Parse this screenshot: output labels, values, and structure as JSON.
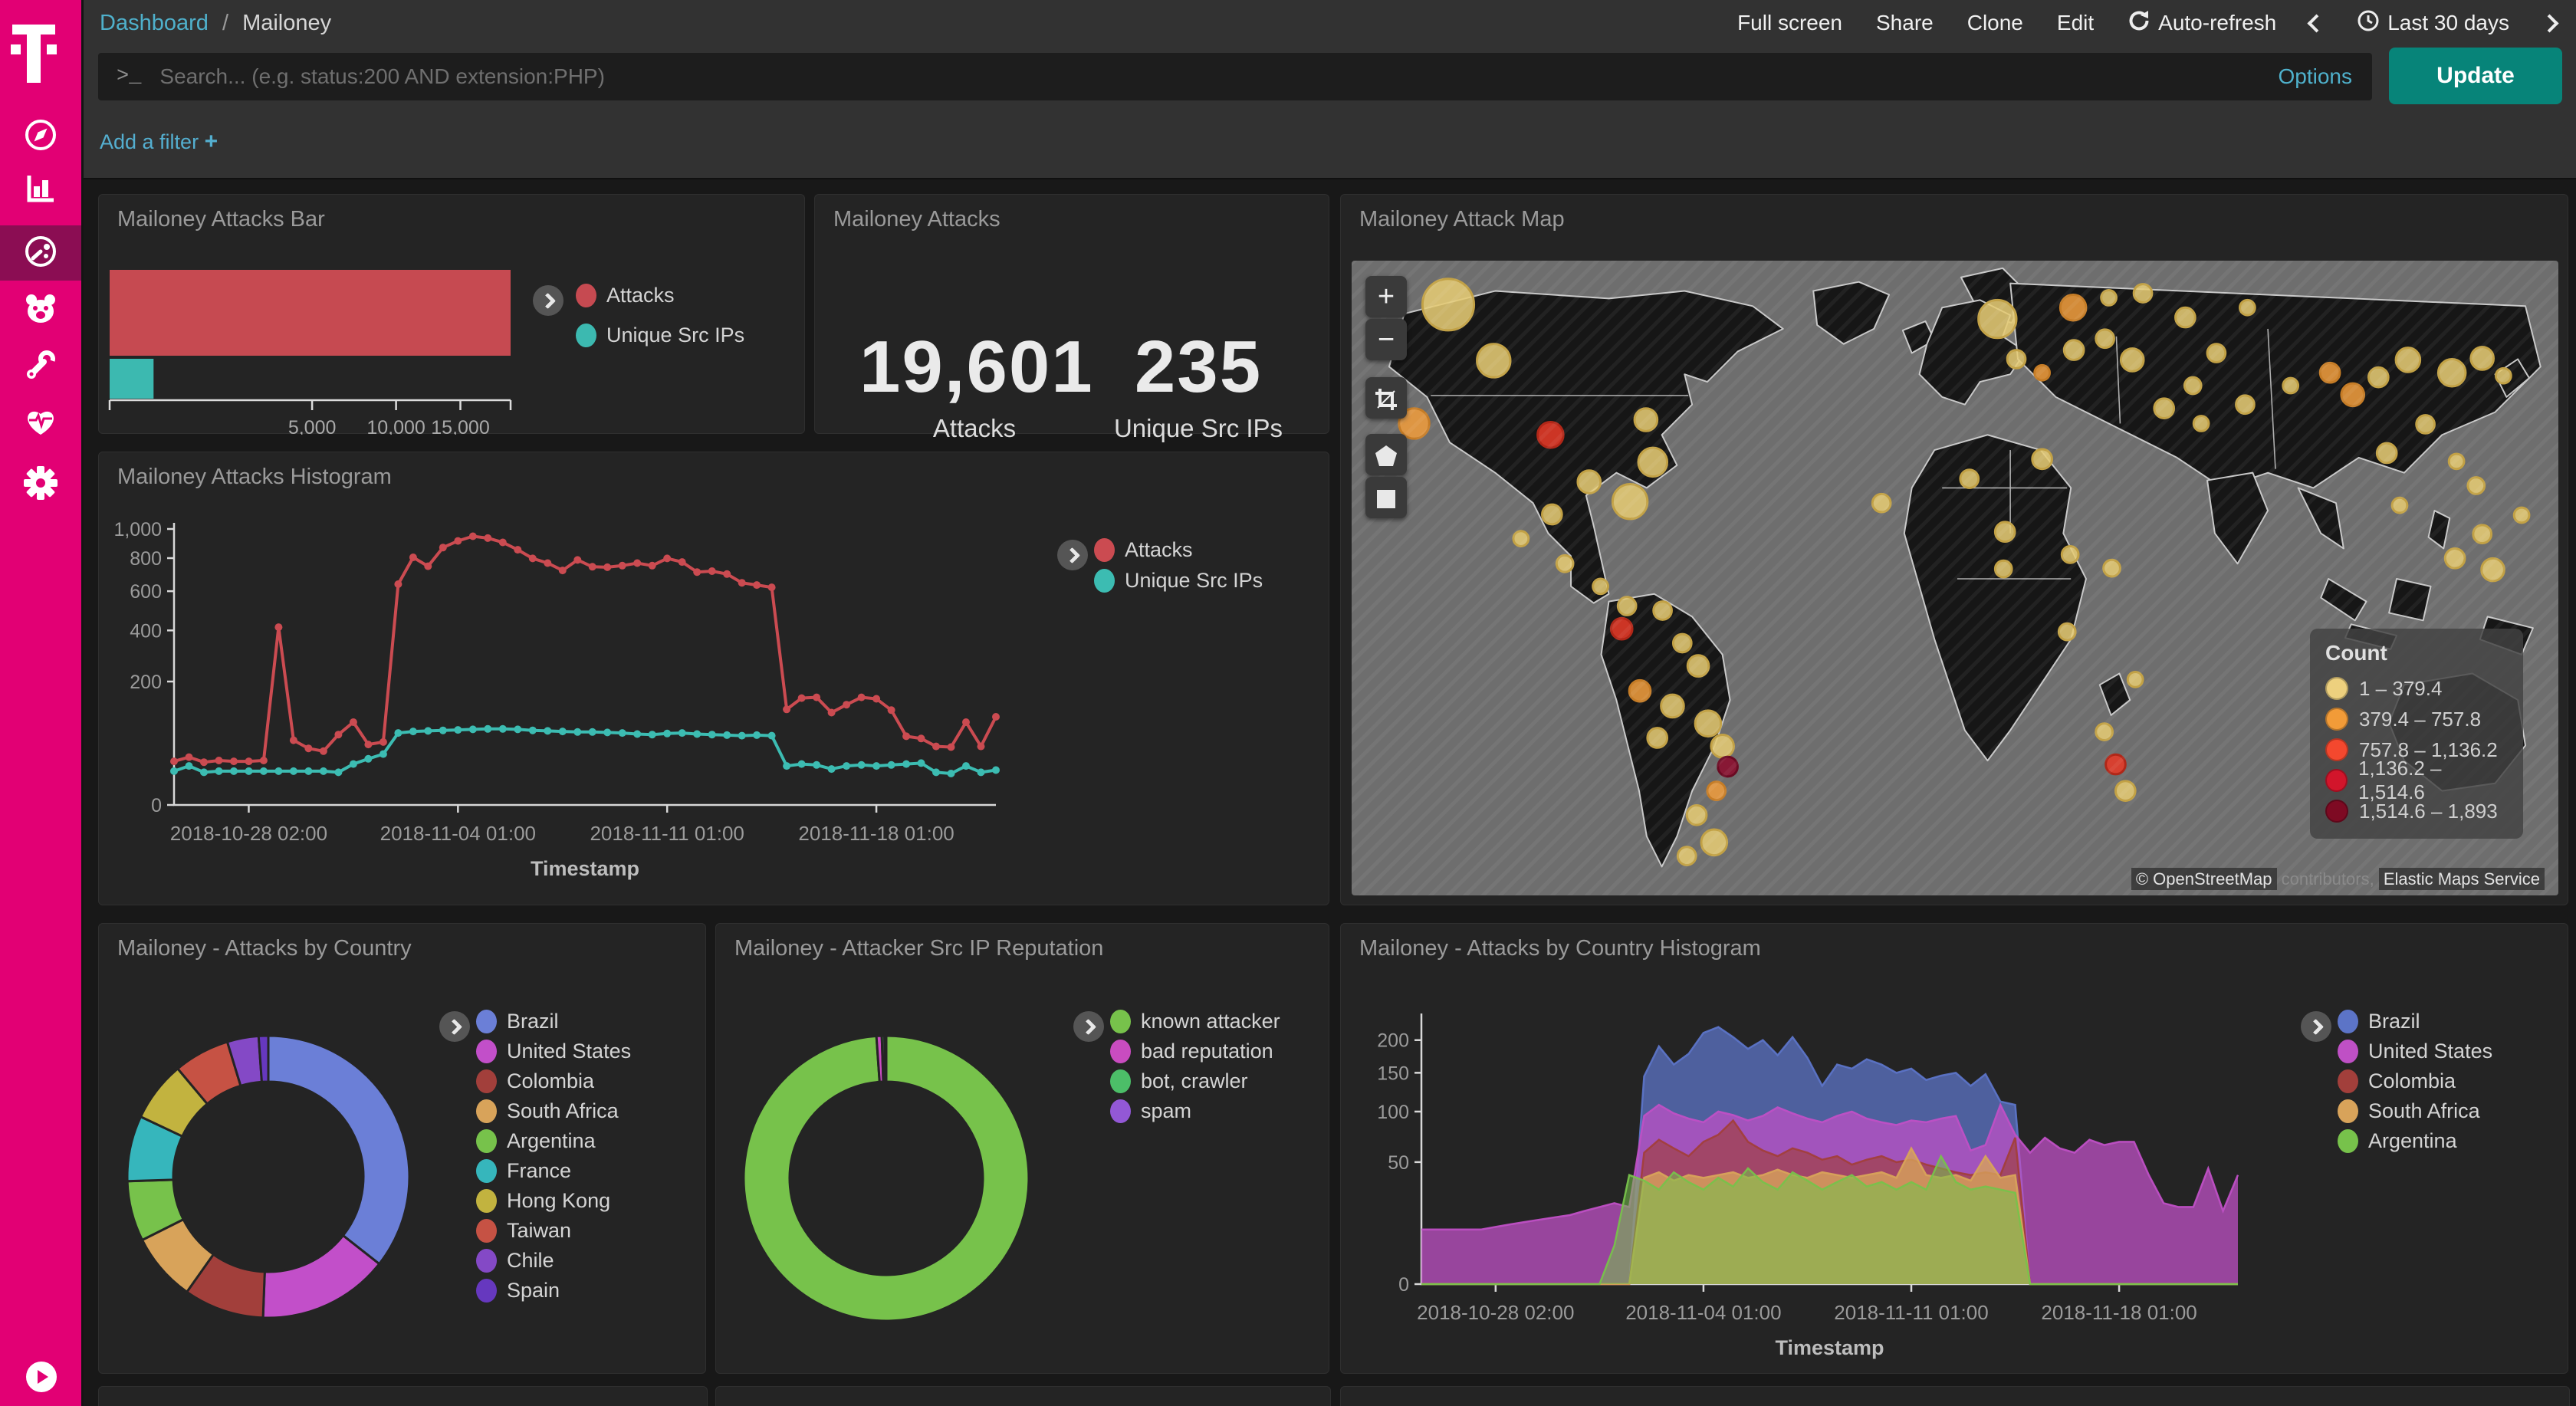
{
  "sidebar": {
    "brand": "T",
    "items": [
      {
        "name": "discover"
      },
      {
        "name": "visualize"
      },
      {
        "name": "dashboard",
        "active": true
      },
      {
        "name": "timelion"
      },
      {
        "name": "dev-tools"
      },
      {
        "name": "monitoring"
      },
      {
        "name": "management"
      }
    ]
  },
  "topbar": {
    "breadcrumb_root": "Dashboard",
    "breadcrumb_sep": "/",
    "breadcrumb_page": "Mailoney",
    "actions": {
      "full_screen": "Full screen",
      "share": "Share",
      "clone": "Clone",
      "edit": "Edit",
      "auto_refresh": "Auto-refresh"
    },
    "time_range": "Last 30 days"
  },
  "search": {
    "placeholder": "Search... (e.g. status:200 AND extension:PHP)",
    "prompt": ">_",
    "options_label": "Options",
    "update_label": "Update"
  },
  "filter_bar": {
    "add_filter_label": "Add a filter",
    "plus": "+"
  },
  "metric_panel": {
    "title": "Mailoney Attacks",
    "metrics": [
      {
        "value": "19,601",
        "label": "Attacks"
      },
      {
        "value": "235",
        "label": "Unique Src IPs"
      }
    ]
  },
  "map": {
    "title": "Mailoney Attack Map",
    "controls": [
      "zoom-in",
      "zoom-out",
      "crop",
      "polygon",
      "rectangle"
    ],
    "legend_title": "Count",
    "legend": [
      {
        "label": "1 – 379.4",
        "color": "#EDD07E"
      },
      {
        "label": "379.4 – 757.8",
        "color": "#F29B38"
      },
      {
        "label": "757.8 – 1,136.2",
        "color": "#F4482E"
      },
      {
        "label": "1,136.2 – 1,514.6",
        "color": "#D2152B"
      },
      {
        "label": "1,514.6 – 1,893",
        "color": "#7E0A23"
      }
    ],
    "attribution": {
      "a": "© OpenStreetMap",
      "b": "contributors,",
      "c": "Elastic Maps Service"
    },
    "palette": {
      "y": {
        "f": "#E5CB74",
        "s": "#C2A145"
      },
      "o": {
        "f": "#EE9C3D",
        "s": "#C57C26"
      },
      "r": {
        "f": "#E63A28",
        "s": "#B02718"
      },
      "d": {
        "f": "#8C0D2D",
        "s": "#6A0A22"
      }
    },
    "circles": [
      [
        118,
        58,
        34,
        "y"
      ],
      [
        178,
        132,
        22,
        "y"
      ],
      [
        73,
        215,
        20,
        "o"
      ],
      [
        48,
        248,
        13,
        "y"
      ],
      [
        253,
        230,
        17,
        "r"
      ],
      [
        379,
        210,
        15,
        "y"
      ],
      [
        388,
        266,
        19,
        "y"
      ],
      [
        304,
        292,
        15,
        "y"
      ],
      [
        358,
        318,
        23,
        "y"
      ],
      [
        255,
        335,
        13,
        "y"
      ],
      [
        214,
        367,
        10,
        "y"
      ],
      [
        272,
        400,
        11,
        "y"
      ],
      [
        319,
        430,
        10,
        "y"
      ],
      [
        354,
        456,
        12,
        "y"
      ],
      [
        347,
        486,
        14,
        "r"
      ],
      [
        401,
        462,
        12,
        "y"
      ],
      [
        427,
        505,
        12,
        "y"
      ],
      [
        448,
        535,
        14,
        "y"
      ],
      [
        371,
        568,
        14,
        "o"
      ],
      [
        414,
        588,
        15,
        "y"
      ],
      [
        394,
        630,
        13,
        "y"
      ],
      [
        461,
        611,
        17,
        "y"
      ],
      [
        480,
        641,
        15,
        "y"
      ],
      [
        487,
        668,
        13,
        "d"
      ],
      [
        472,
        700,
        12,
        "o"
      ],
      [
        446,
        732,
        13,
        "y"
      ],
      [
        469,
        768,
        17,
        "y"
      ],
      [
        433,
        786,
        12,
        "y"
      ],
      [
        843,
        77,
        25,
        "y"
      ],
      [
        943,
        62,
        17,
        "o"
      ],
      [
        990,
        49,
        10,
        "y"
      ],
      [
        1035,
        43,
        12,
        "y"
      ],
      [
        868,
        130,
        12,
        "y"
      ],
      [
        902,
        148,
        10,
        "o"
      ],
      [
        944,
        118,
        13,
        "y"
      ],
      [
        985,
        103,
        12,
        "y"
      ],
      [
        1021,
        131,
        15,
        "y"
      ],
      [
        1091,
        75,
        13,
        "y"
      ],
      [
        1132,
        122,
        12,
        "y"
      ],
      [
        1173,
        62,
        10,
        "y"
      ],
      [
        690,
        320,
        12,
        "y"
      ],
      [
        806,
        288,
        12,
        "y"
      ],
      [
        902,
        262,
        13,
        "y"
      ],
      [
        853,
        358,
        13,
        "y"
      ],
      [
        939,
        388,
        11,
        "y"
      ],
      [
        994,
        406,
        11,
        "y"
      ],
      [
        851,
        407,
        11,
        "y"
      ],
      [
        935,
        490,
        11,
        "y"
      ],
      [
        1025,
        553,
        10,
        "y"
      ],
      [
        984,
        622,
        11,
        "y"
      ],
      [
        999,
        665,
        13,
        "r"
      ],
      [
        1012,
        700,
        13,
        "y"
      ],
      [
        1063,
        195,
        13,
        "y"
      ],
      [
        1112,
        215,
        10,
        "y"
      ],
      [
        1101,
        165,
        11,
        "y"
      ],
      [
        1170,
        190,
        12,
        "y"
      ],
      [
        1230,
        165,
        10,
        "y"
      ],
      [
        1282,
        148,
        13,
        "o"
      ],
      [
        1312,
        177,
        15,
        "o"
      ],
      [
        1346,
        154,
        13,
        "y"
      ],
      [
        1385,
        131,
        16,
        "y"
      ],
      [
        1443,
        148,
        18,
        "y"
      ],
      [
        1483,
        129,
        15,
        "y"
      ],
      [
        1511,
        152,
        10,
        "y"
      ],
      [
        1408,
        216,
        12,
        "y"
      ],
      [
        1357,
        254,
        13,
        "y"
      ],
      [
        1449,
        265,
        10,
        "y"
      ],
      [
        1475,
        297,
        11,
        "y"
      ],
      [
        1374,
        323,
        10,
        "y"
      ],
      [
        1483,
        361,
        12,
        "y"
      ],
      [
        1535,
        336,
        10,
        "y"
      ],
      [
        1447,
        393,
        13,
        "y"
      ],
      [
        1497,
        408,
        15,
        "y"
      ]
    ]
  },
  "chart_data": [
    {
      "id": "attacks-bar",
      "type": "bar",
      "title": "Mailoney Attacks Bar",
      "xmax": 19601,
      "scale": "sqrt",
      "xticks": [
        5000,
        10000,
        15000
      ],
      "series": [
        {
          "name": "Attacks",
          "value": 19601,
          "color": "#C64A51"
        },
        {
          "name": "Unique Src IPs",
          "value": 235,
          "color": "#3CB9B0"
        }
      ]
    },
    {
      "id": "attacks-histogram",
      "type": "line",
      "title": "Mailoney Attacks Histogram",
      "xlabel": "Timestamp",
      "scale": "sqrt",
      "ymax": 1000,
      "yticks": [
        0,
        200,
        400,
        600,
        800,
        1000
      ],
      "xticks": [
        {
          "i": 5,
          "label": "2018-10-28 02:00"
        },
        {
          "i": 19,
          "label": "2018-11-04 01:00"
        },
        {
          "i": 33,
          "label": "2018-11-11 01:00"
        },
        {
          "i": 47,
          "label": "2018-11-18 01:00"
        }
      ],
      "series": [
        {
          "name": "Attacks",
          "color": "#CB4B51",
          "values": [
            25,
            30,
            24,
            26,
            25,
            25,
            26,
            415,
            55,
            42,
            38,
            65,
            90,
            48,
            52,
            640,
            805,
            748,
            870,
            915,
            948,
            935,
            905,
            855,
            798,
            768,
            722,
            788,
            745,
            742,
            752,
            768,
            752,
            798,
            775,
            712,
            718,
            700,
            648,
            635,
            622,
            120,
            150,
            152,
            112,
            132,
            152,
            148,
            118,
            62,
            58,
            45,
            44,
            90,
            45,
            102
          ]
        },
        {
          "name": "Unique Src IPs",
          "color": "#3CBCB2",
          "values": [
            15,
            20,
            14,
            15,
            15,
            15,
            15,
            15,
            15,
            15,
            15,
            14,
            22,
            28,
            34,
            68,
            71,
            72,
            73,
            74,
            75,
            76,
            76,
            75,
            73,
            72,
            71,
            70,
            70,
            69,
            68,
            66,
            65,
            67,
            68,
            66,
            65,
            64,
            63,
            64,
            63,
            20,
            22,
            21,
            17,
            20,
            21,
            20,
            21,
            22,
            23,
            14,
            13,
            20,
            14,
            16
          ]
        }
      ]
    },
    {
      "id": "country-pie",
      "type": "pie",
      "title": "Mailoney - Attacks by Country",
      "slices": [
        {
          "label": "Brazil",
          "pct": 35.6,
          "color": "#6B7FD7"
        },
        {
          "label": "United States",
          "pct": 15.0,
          "color": "#C24FC9"
        },
        {
          "label": "Colombia",
          "pct": 9.2,
          "color": "#A23F3B"
        },
        {
          "label": "South Africa",
          "pct": 7.8,
          "color": "#D8A35A"
        },
        {
          "label": "Argentina",
          "pct": 6.9,
          "color": "#77C24B"
        },
        {
          "label": "France",
          "pct": 7.5,
          "color": "#36B6BC"
        },
        {
          "label": "Hong Kong",
          "pct": 6.9,
          "color": "#C2B33F"
        },
        {
          "label": "Taiwan",
          "pct": 6.4,
          "color": "#C65244"
        },
        {
          "label": "Chile",
          "pct": 3.6,
          "color": "#8449C6"
        },
        {
          "label": "Spain",
          "pct": 1.1,
          "color": "#6638BF"
        }
      ]
    },
    {
      "id": "reputation-pie",
      "type": "pie",
      "title": "Mailoney - Attacker Src IP Reputation",
      "slices": [
        {
          "label": "known attacker",
          "pct": 98.9,
          "color": "#77C24B"
        },
        {
          "label": "bad reputation",
          "pct": 0.6,
          "color": "#C94CC0"
        },
        {
          "label": "bot, crawler",
          "pct": 0.3,
          "color": "#4CBE68"
        },
        {
          "label": "spam",
          "pct": 0.2,
          "color": "#9358D6"
        }
      ]
    },
    {
      "id": "country-histogram",
      "type": "area",
      "title": "Mailoney - Attacks by Country Histogram",
      "xlabel": "Timestamp",
      "scale": "sqrt",
      "ymax": 235,
      "yticks": [
        0,
        50,
        100,
        150,
        200
      ],
      "xticks": [
        {
          "i": 5,
          "label": "2018-10-28 02:00"
        },
        {
          "i": 19,
          "label": "2018-11-04 01:00"
        },
        {
          "i": 33,
          "label": "2018-11-11 01:00"
        },
        {
          "i": 47,
          "label": "2018-11-18 01:00"
        }
      ],
      "series": [
        {
          "name": "Brazil",
          "color": "#5C74C7",
          "opacity": 0.75,
          "values": [
            0,
            0,
            0,
            0,
            0,
            0,
            0,
            0,
            0,
            0,
            0,
            0,
            0,
            0,
            0,
            145,
            190,
            162,
            178,
            212,
            222,
            205,
            186,
            200,
            176,
            205,
            172,
            132,
            162,
            156,
            170,
            162,
            150,
            156,
            140,
            146,
            150,
            132,
            148,
            112,
            108,
            0,
            0,
            0,
            0,
            0,
            0,
            0,
            0,
            0,
            0,
            0,
            0,
            0,
            0,
            0
          ]
        },
        {
          "name": "United States",
          "color": "#BF50C5",
          "opacity": 0.75,
          "values": [
            10,
            10,
            10,
            10,
            10,
            11,
            12,
            13,
            14,
            15,
            16,
            18,
            20,
            22,
            20,
            95,
            108,
            98,
            92,
            88,
            100,
            96,
            90,
            95,
            105,
            98,
            92,
            88,
            95,
            100,
            92,
            88,
            85,
            90,
            88,
            92,
            95,
            60,
            65,
            108,
            75,
            58,
            72,
            62,
            58,
            70,
            65,
            68,
            68,
            40,
            22,
            20,
            20,
            45,
            18,
            40
          ]
        },
        {
          "name": "Colombia",
          "color": "#A23F3B",
          "opacity": 0.65,
          "values": [
            0,
            0,
            0,
            0,
            0,
            0,
            0,
            0,
            0,
            0,
            0,
            0,
            0,
            0,
            0,
            58,
            70,
            62,
            55,
            68,
            75,
            90,
            68,
            60,
            55,
            62,
            58,
            52,
            55,
            48,
            52,
            55,
            50,
            52,
            48,
            45,
            42,
            40,
            42,
            40,
            72,
            0,
            0,
            0,
            0,
            0,
            0,
            0,
            0,
            0,
            0,
            0,
            0,
            0,
            0,
            0
          ]
        },
        {
          "name": "South Africa",
          "color": "#D8A35A",
          "opacity": 0.8,
          "values": [
            0,
            0,
            0,
            0,
            0,
            0,
            0,
            0,
            0,
            0,
            0,
            0,
            0,
            0,
            0,
            38,
            42,
            36,
            40,
            38,
            40,
            42,
            38,
            40,
            44,
            40,
            38,
            42,
            40,
            38,
            40,
            42,
            38,
            62,
            40,
            38,
            40,
            36,
            55,
            38,
            40,
            0,
            0,
            0,
            0,
            0,
            0,
            0,
            0,
            0,
            0,
            0,
            0,
            0,
            0,
            0
          ]
        },
        {
          "name": "Argentina",
          "color": "#77C24B",
          "opacity": 0.55,
          "values": [
            0,
            0,
            0,
            0,
            0,
            0,
            0,
            0,
            0,
            0,
            0,
            0,
            0,
            5,
            40,
            36,
            30,
            42,
            35,
            30,
            38,
            32,
            45,
            35,
            30,
            42,
            36,
            30,
            35,
            40,
            32,
            35,
            30,
            35,
            30,
            55,
            35,
            30,
            32,
            30,
            28,
            0,
            0,
            0,
            0,
            0,
            0,
            0,
            0,
            0,
            0,
            0,
            0,
            0,
            0,
            0
          ]
        }
      ]
    }
  ]
}
